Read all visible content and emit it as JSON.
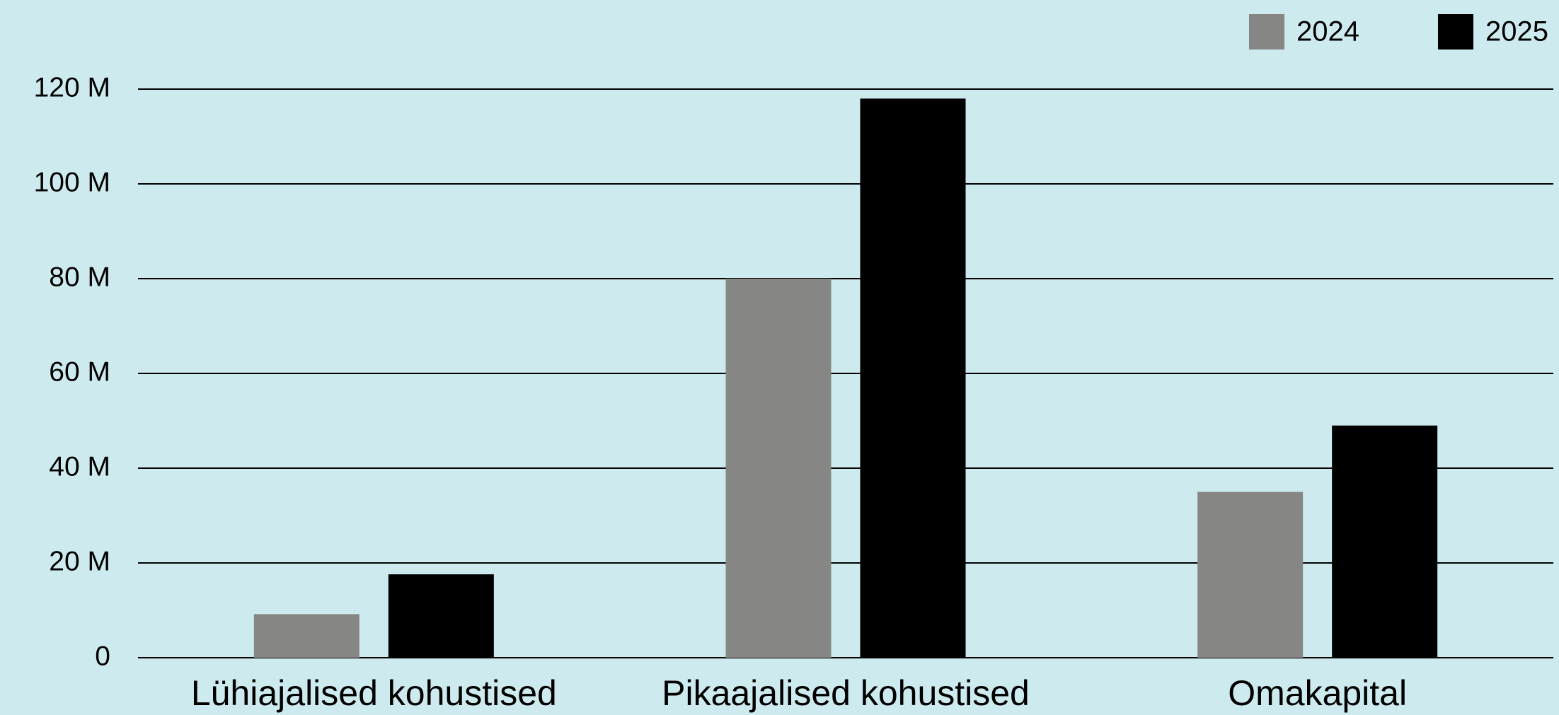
{
  "chart_data": {
    "type": "bar",
    "categories": [
      "Lühiajalised kohustised",
      "Pikaajalised kohustised",
      "Omakapital"
    ],
    "series": [
      {
        "name": "2024",
        "color": "#868784",
        "values": [
          9200000,
          80000000,
          35000000
        ]
      },
      {
        "name": "2025",
        "color": "#000000",
        "values": [
          17600000,
          118000000,
          49000000
        ]
      }
    ],
    "ylim": [
      0,
      120000000
    ],
    "yticks": [
      0,
      {
        "value": 20000000,
        "label": "20 M"
      },
      {
        "value": 40000000,
        "label": "40 M"
      },
      {
        "value": 60000000,
        "label": "60 M"
      },
      {
        "value": 80000000,
        "label": "80 M"
      },
      {
        "value": 100000000,
        "label": "100 M"
      },
      {
        "value": 120000000,
        "label": "120 M"
      }
    ],
    "grid": true,
    "legend": "top-right"
  }
}
